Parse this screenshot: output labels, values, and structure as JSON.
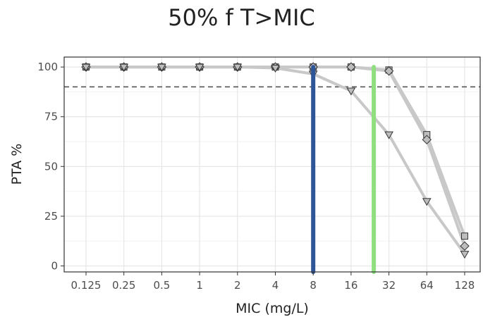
{
  "chart_data": {
    "type": "line",
    "title": "50% f T>MIC",
    "xlabel": "MIC (mg/L)",
    "ylabel": "PTA %",
    "categories": [
      "0.125",
      "0.25",
      "0.5",
      "1",
      "2",
      "4",
      "8",
      "16",
      "32",
      "64",
      "128"
    ],
    "ylim": [
      -3,
      105
    ],
    "yticks": [
      0,
      25,
      50,
      75,
      100
    ],
    "grid": true,
    "legend": "none",
    "target_line": {
      "y": 90,
      "style": "dashed",
      "color": "#555555"
    },
    "series": [
      {
        "marker": "square",
        "color": "#c8c8c8",
        "values": [
          100,
          100,
          100,
          100,
          100,
          100,
          100,
          100,
          98.5,
          66,
          15
        ]
      },
      {
        "marker": "diamond",
        "color": "#c8c8c8",
        "values": [
          100,
          100,
          100,
          100,
          100,
          100,
          100,
          100,
          98,
          63.5,
          10
        ]
      },
      {
        "marker": "triangle",
        "color": "#c8c8c8",
        "values": [
          100,
          100,
          100,
          100,
          100,
          99.5,
          96.5,
          88,
          66,
          32.5,
          6
        ]
      }
    ],
    "vertical_lines": [
      {
        "x_index": 6,
        "color": "#2e5597"
      },
      {
        "x_index": 7.6,
        "color": "#8fdf80"
      }
    ],
    "colors": {
      "panel_border": "#333333",
      "grid": "#e6e6e6",
      "marker_fill": "#bdbdbd"
    }
  }
}
